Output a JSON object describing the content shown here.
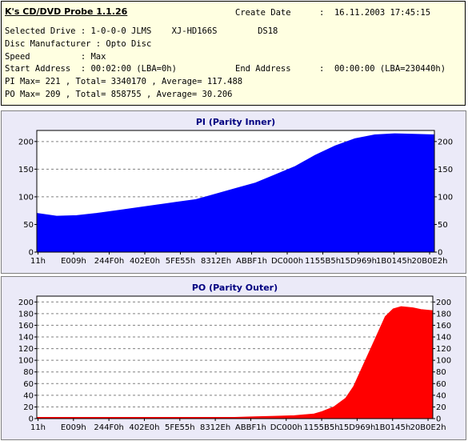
{
  "app_title": "K's CD/DVD Probe 1.1.26",
  "create_date_label": "Create Date",
  "create_date_value": ":  16.11.2003 17:45:15",
  "drive_line": "Selected Drive : 1-0-0-0 JLMS    XJ-HD166S        DS18",
  "manufacturer_line": "Disc Manufacturer : Opto Disc",
  "speed_line": "Speed          : Max",
  "start_line": "Start Address  : 00:02:00 (LBA=0h)",
  "end_label": "End Address",
  "end_value": ":  00:00:00 (LBA=230440h)",
  "pi_line": "PI Max= 221 , Total= 3340170 , Average= 117.488",
  "po_line": "PO Max= 209 , Total= 858755 , Average= 30.206",
  "colors": {
    "pi_fill": "#0000ff",
    "po_fill": "#ff0000",
    "panel_bg": "#ebeaf8",
    "plot_bg": "#ffffff",
    "info_bg": "#ffffe1",
    "title_color": "#000080"
  },
  "chart_data": [
    {
      "type": "area",
      "title": "PI (Parity Inner)",
      "x_ticks": [
        "11h",
        "E009h",
        "244F0h",
        "402E0h",
        "5FE55h",
        "8312Eh",
        "ABBF1h",
        "DC000h",
        "1155B5h",
        "15D969h",
        "1B0145h",
        "20B0E2h"
      ],
      "ylim": [
        0,
        220
      ],
      "y_ticks": [
        0,
        50,
        100,
        150,
        200
      ],
      "grid": "horizontal",
      "y_axis_right": true,
      "series": [
        {
          "x": [
            0,
            0.05,
            0.1,
            0.15,
            0.2,
            0.25,
            0.3,
            0.35,
            0.4,
            0.45,
            0.5,
            0.55,
            0.6,
            0.65,
            0.7,
            0.75,
            0.8,
            0.85,
            0.9,
            0.95,
            1.0
          ],
          "values": [
            70,
            65,
            66,
            70,
            75,
            80,
            85,
            90,
            95,
            105,
            115,
            125,
            140,
            155,
            175,
            192,
            205,
            212,
            214,
            213,
            212
          ]
        }
      ]
    },
    {
      "type": "area",
      "title": "PO (Parity Outer)",
      "x_ticks": [
        "11h",
        "E009h",
        "244F0h",
        "402E0h",
        "5FE55h",
        "8312Eh",
        "ABBF1h",
        "DC000h",
        "1155B5h",
        "15D969h",
        "1B0145h",
        "20B0E2h"
      ],
      "ylim": [
        0,
        210
      ],
      "y_ticks": [
        0,
        20,
        40,
        60,
        80,
        100,
        120,
        140,
        160,
        180,
        200
      ],
      "grid": "horizontal",
      "y_axis_right": true,
      "series": [
        {
          "x": [
            0,
            0.05,
            0.1,
            0.15,
            0.2,
            0.25,
            0.3,
            0.35,
            0.4,
            0.45,
            0.5,
            0.55,
            0.6,
            0.65,
            0.7,
            0.72,
            0.75,
            0.78,
            0.8,
            0.82,
            0.85,
            0.88,
            0.9,
            0.92,
            0.95,
            0.97,
            1.0
          ],
          "values": [
            2,
            2,
            2,
            2,
            2,
            2,
            2,
            2,
            2,
            2,
            2,
            3,
            4,
            5,
            8,
            12,
            20,
            35,
            55,
            85,
            130,
            175,
            188,
            192,
            190,
            187,
            185
          ]
        }
      ]
    }
  ]
}
